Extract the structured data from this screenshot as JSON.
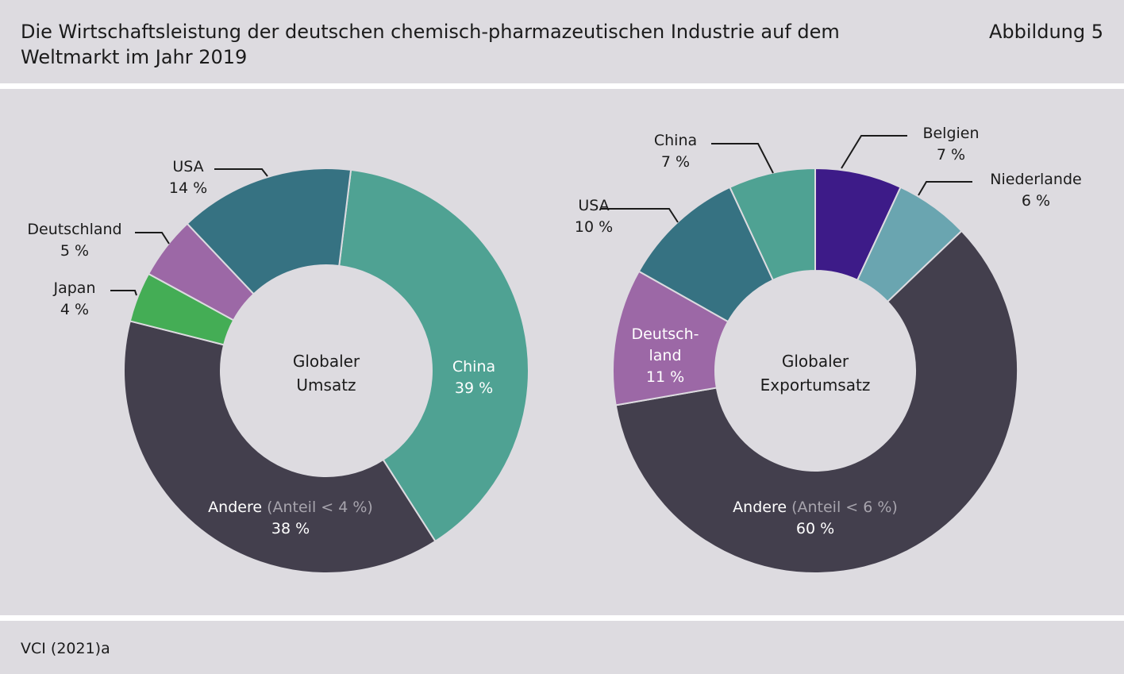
{
  "header": {
    "title": "Die Wirtschaftsleistung der deutschen chemisch-pharmazeutischen Industrie auf dem Weltmarkt im Jahr 2019",
    "figure_label": "Abbildung 5"
  },
  "footer": {
    "source": "VCI (2021)a"
  },
  "colors": {
    "china": "#4fa293",
    "andere": "#433f4d",
    "japan": "#44ad55",
    "deutschland": "#9c68a6",
    "usa": "#367282",
    "belgien": "#3d1b88",
    "niederlande": "#6aa5b0",
    "background": "#dddbe0"
  },
  "chart_data": [
    {
      "type": "pie",
      "center_label": [
        "Globaler",
        "Umsatz"
      ],
      "unit": "%",
      "slices": [
        {
          "key": "china",
          "label": "China",
          "value": 39,
          "value_label": "39 %"
        },
        {
          "key": "andere",
          "label": "Andere",
          "note": "(Anteil < 4 %)",
          "value": 38,
          "value_label": "38 %"
        },
        {
          "key": "japan",
          "label": "Japan",
          "value": 4,
          "value_label": "4 %"
        },
        {
          "key": "deutschland",
          "label": "Deutschland",
          "value": 5,
          "value_label": "5 %"
        },
        {
          "key": "usa",
          "label": "USA",
          "value": 14,
          "value_label": "14 %"
        }
      ]
    },
    {
      "type": "pie",
      "center_label": [
        "Globaler",
        "Exportumsatz"
      ],
      "unit": "%",
      "slices": [
        {
          "key": "belgien",
          "label": "Belgien",
          "value": 7,
          "value_label": "7 %"
        },
        {
          "key": "niederlande",
          "label": "Niederlande",
          "value": 6,
          "value_label": "6 %"
        },
        {
          "key": "andere",
          "label": "Andere",
          "note": "(Anteil < 6 %)",
          "value": 60,
          "value_label": "60 %"
        },
        {
          "key": "deutschland",
          "label": "Deutsch-land",
          "value": 11,
          "value_label": "11 %"
        },
        {
          "key": "usa",
          "label": "USA",
          "value": 10,
          "value_label": "10 %"
        },
        {
          "key": "china",
          "label": "China",
          "value": 7,
          "value_label": "7 %"
        }
      ]
    }
  ]
}
